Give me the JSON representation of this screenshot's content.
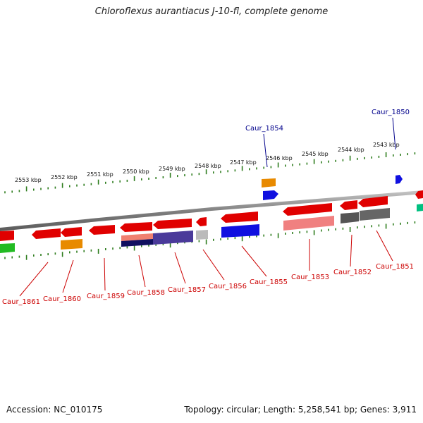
{
  "title": "Chloroflexus aurantiacus J-10-fl, complete genome",
  "footer": {
    "accession": "Accession: NC_010175",
    "summary": "Topology: circular; Length: 5,258,541 bp; Genes: 3,911"
  },
  "colors": {
    "backbone": "#888888",
    "tick": "#2e7d1e",
    "forward_label": "#00008b",
    "reverse_label": "#cc0000"
  },
  "scale": {
    "unit": "kbp",
    "labels": [
      "2553 kbp",
      "2552 kbp",
      "2551 kbp",
      "2550 kbp",
      "2549 kbp",
      "2548 kbp",
      "2547 kbp",
      "2546 kbp",
      "2545 kbp",
      "2544 kbp",
      "2543 kbp"
    ]
  },
  "gene_labels": {
    "forward": [
      "Caur_1854",
      "Caur_1850"
    ],
    "reverse": [
      "Caur_1861",
      "Caur_1860",
      "Caur_1859",
      "Caur_1858",
      "Caur_1857",
      "Caur_1856",
      "Caur_1855",
      "Caur_1853",
      "Caur_1852",
      "Caur_1851"
    ]
  }
}
